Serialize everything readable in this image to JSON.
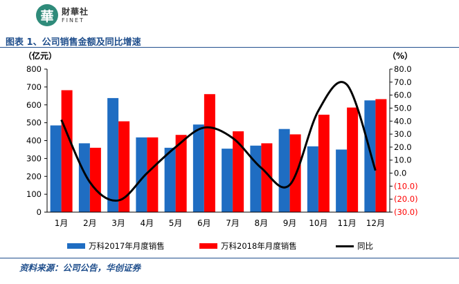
{
  "header": {
    "logo_mark": "華",
    "logo_cn": "財華社",
    "logo_en": "FINET",
    "figure_title": "图表 1、公司销售金额及同比增速"
  },
  "footer": {
    "source": "资料来源：公司公告，华创证券"
  },
  "colors": {
    "series_2017": "#1f6dc2",
    "series_2018": "#ff0000",
    "yoy_line": "#000000",
    "negative_tick": "#ff0000",
    "title_blue": "#1f4e8c",
    "logo_green": "#2f8b7a"
  },
  "chart_data": {
    "type": "bar",
    "categories": [
      "1月",
      "2月",
      "3月",
      "4月",
      "5月",
      "6月",
      "7月",
      "8月",
      "9月",
      "10月",
      "11月",
      "12月"
    ],
    "series": [
      {
        "name": "万科2017年月度销售",
        "type": "bar",
        "axis": "left",
        "values": [
          485,
          385,
          638,
          418,
          360,
          490,
          355,
          372,
          465,
          368,
          350,
          625
        ]
      },
      {
        "name": "万科2018年月度销售",
        "type": "bar",
        "axis": "left",
        "values": [
          682,
          360,
          508,
          418,
          432,
          660,
          452,
          385,
          435,
          545,
          585,
          632
        ]
      },
      {
        "name": "同比",
        "type": "line",
        "axis": "right",
        "values": [
          41,
          -7,
          -21,
          0,
          20,
          35,
          27,
          4,
          -9,
          48,
          68,
          2
        ]
      }
    ],
    "ylabel_left": "（亿元）",
    "ylabel_right": "（%）",
    "ylim_left": [
      0,
      800
    ],
    "ylim_right": [
      -30,
      80
    ],
    "yticks_left": [
      "0",
      "100",
      "200",
      "300",
      "400",
      "500",
      "600",
      "700",
      "800"
    ],
    "yticks_right": [
      "(30.0)",
      "(20.0)",
      "(10.0)",
      "0.0",
      "10.0",
      "20.0",
      "30.0",
      "40.0",
      "50.0",
      "60.0",
      "70.0",
      "80.0"
    ],
    "grid": false,
    "legend_position": "bottom"
  }
}
